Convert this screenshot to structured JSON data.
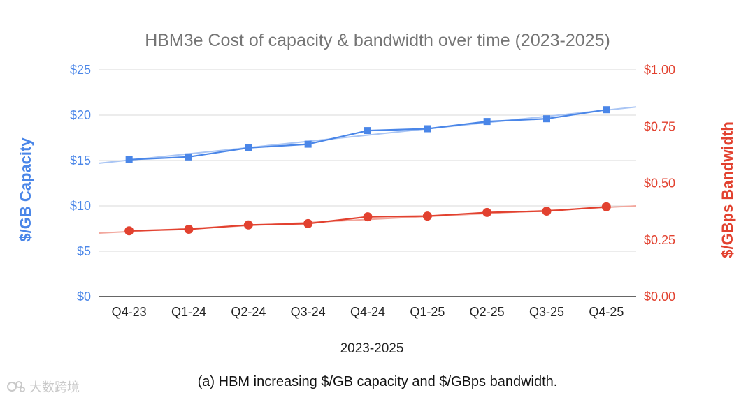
{
  "chart_data": {
    "type": "line",
    "title": "HBM3e Cost of capacity & bandwidth over time (2023-2025)",
    "xlabel": "2023-2025",
    "ylabel_left": "$/GB Capacity",
    "ylabel_right": "$/GBps Bandwidth",
    "categories": [
      "Q4-23",
      "Q1-24",
      "Q2-24",
      "Q3-24",
      "Q4-24",
      "Q1-25",
      "Q2-25",
      "Q3-25",
      "Q4-25"
    ],
    "left_axis": {
      "ylim": [
        0,
        25
      ],
      "ticks": [
        0,
        5,
        10,
        15,
        20,
        25
      ],
      "tick_labels": [
        "$0",
        "$5",
        "$10",
        "$15",
        "$20",
        "$25"
      ]
    },
    "right_axis": {
      "ylim": [
        0,
        1
      ],
      "ticks": [
        0,
        0.25,
        0.5,
        0.75,
        1
      ],
      "tick_labels": [
        "$0.00",
        "$0.25",
        "$0.50",
        "$0.75",
        "$1.00"
      ]
    },
    "series": [
      {
        "name": "$/GB Capacity",
        "axis": "left",
        "marker": "square",
        "color": "#4a86e8",
        "trend_color": "#a9c5f4",
        "values": [
          15.1,
          15.4,
          16.4,
          16.8,
          18.3,
          18.5,
          19.3,
          19.6,
          20.6
        ],
        "trendline": {
          "start": 14.7,
          "end": 20.9
        }
      },
      {
        "name": "$/GBps Bandwidth",
        "axis": "right",
        "marker": "circle",
        "color": "#e2412f",
        "trend_color": "#f2a79d",
        "values": [
          0.29,
          0.297,
          0.316,
          0.322,
          0.352,
          0.355,
          0.371,
          0.377,
          0.396
        ],
        "trendline": {
          "start": 0.28,
          "end": 0.4
        }
      }
    ],
    "grid": true,
    "legend": "none"
  },
  "caption": "(a) HBM increasing $/GB capacity and $/GBps bandwidth.",
  "watermark": {
    "text": "大数跨境",
    "icon": "watermark-logo-icon"
  }
}
